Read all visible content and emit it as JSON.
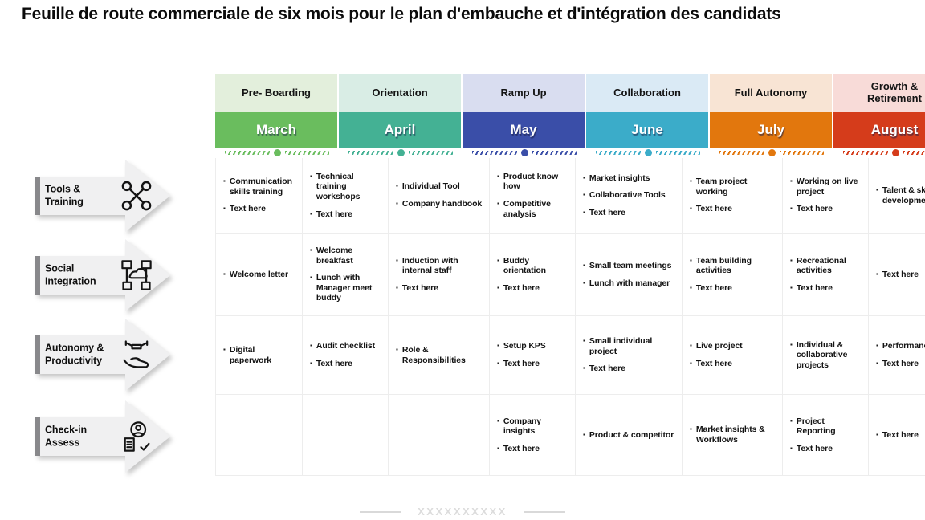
{
  "title": "Feuille de route commerciale de six mois pour le plan d'embauche et d'intégration des candidats",
  "phases": [
    {
      "label": "Pre- Boarding",
      "bg": "#e3efdc"
    },
    {
      "label": "Orientation",
      "bg": "#d9ede5"
    },
    {
      "label": "Ramp Up",
      "bg": "#d9ddf0"
    },
    {
      "label": "Collaboration",
      "bg": "#daeaf5"
    },
    {
      "label": "Full Autonomy",
      "bg": "#f8e4d4"
    },
    {
      "label": "Growth & Retirement",
      "bg": "#f8dbd8"
    }
  ],
  "months": [
    {
      "label": "March",
      "color": "#6abd5e"
    },
    {
      "label": "April",
      "color": "#44b194"
    },
    {
      "label": "May",
      "color": "#3a4ea8"
    },
    {
      "label": "June",
      "color": "#3bacc9"
    },
    {
      "label": "July",
      "color": "#e2770d"
    },
    {
      "label": "August",
      "color": "#d53c1b"
    }
  ],
  "categories": [
    {
      "label": "Tools & Training"
    },
    {
      "label": "Social Integration"
    },
    {
      "label": "Autonomy & Productivity"
    },
    {
      "label": "Check-in Assess"
    }
  ],
  "rows": [
    {
      "category": "Tools & Training",
      "cells": [
        {
          "items": [
            "Communication skills training",
            "Text here"
          ]
        },
        {
          "items": [
            "Technical training workshops",
            "Text here"
          ]
        },
        {
          "items": [
            "Individual Tool",
            "Company handbook"
          ]
        },
        {
          "items": [
            "Product know how",
            "Competitive analysis"
          ]
        },
        {
          "items": [
            "Market insights",
            "Collaborative Tools",
            "Text here"
          ]
        },
        {
          "items": [
            "Team project working",
            "Text here"
          ]
        },
        {
          "items": [
            "Working on live project",
            "Text here"
          ]
        },
        {
          "items": [
            "Talent & skill development"
          ]
        }
      ]
    },
    {
      "category": "Social Integration",
      "cells": [
        {
          "items": [
            "Welcome letter"
          ]
        },
        {
          "items": [
            "Welcome breakfast",
            "Lunch with Manager meet buddy"
          ]
        },
        {
          "items": [
            "Induction with internal staff",
            "Text here"
          ]
        },
        {
          "items": [
            "Buddy orientation",
            "Text here"
          ]
        },
        {
          "items": [
            "Small team meetings",
            "Lunch with manager"
          ]
        },
        {
          "items": [
            "Team building activities",
            "Text here"
          ]
        },
        {
          "items": [
            "Recreational activities",
            "Text here"
          ]
        },
        {
          "items": [
            "Text here"
          ]
        }
      ]
    },
    {
      "category": "Autonomy & Productivity",
      "cells": [
        {
          "items": [
            "Digital paperwork"
          ]
        },
        {
          "items": [
            "Audit checklist",
            "Text here"
          ]
        },
        {
          "items": [
            "Role & Responsibilities"
          ]
        },
        {
          "items": [
            "Setup KPS",
            "Text here"
          ]
        },
        {
          "items": [
            "Small individual project",
            "Text here"
          ]
        },
        {
          "items": [
            "Live project",
            "Text here"
          ]
        },
        {
          "items": [
            "Individual & collaborative projects"
          ]
        },
        {
          "items": [
            "Performance review",
            "Text here"
          ]
        }
      ]
    },
    {
      "category": "Check-in Assess",
      "cells": [
        {
          "items": []
        },
        {
          "items": []
        },
        {
          "items": []
        },
        {
          "items": [
            "Company insights",
            "Text here"
          ]
        },
        {
          "items": [
            "Product & competitor"
          ]
        },
        {
          "items": [
            "Market insights & Workflows"
          ]
        },
        {
          "items": [
            "Project Reporting",
            "Text here"
          ]
        },
        {
          "items": [
            "Text here"
          ]
        }
      ]
    }
  ],
  "footer": {
    "placeholder": "XXXXXXXXXX"
  },
  "style_colors": {
    "arrow_fill": "#f0f0f1",
    "arrow_edge": "#88888b",
    "grid_line": "#ededed"
  }
}
